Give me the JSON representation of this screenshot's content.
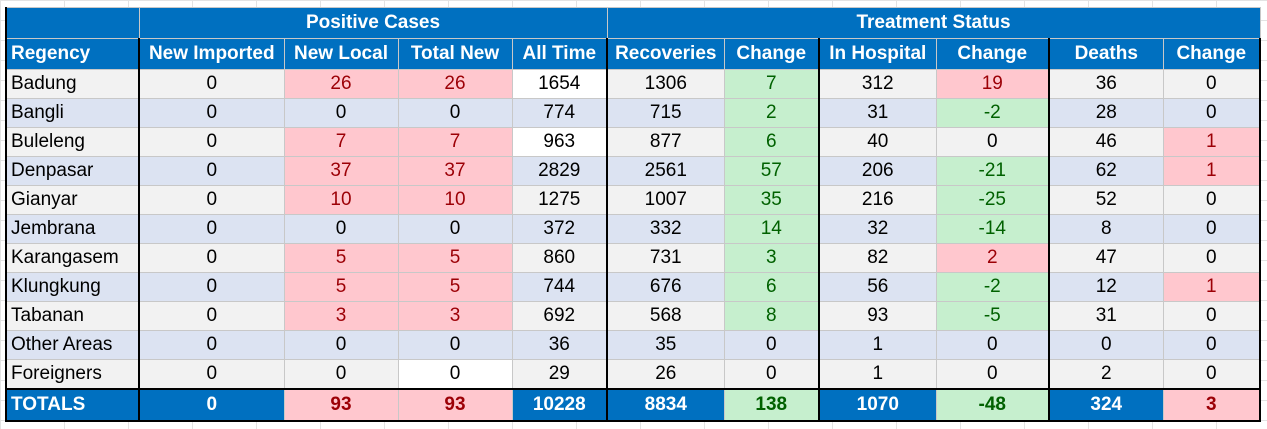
{
  "groups": {
    "positive": "Positive Cases",
    "treatment": "Treatment Status"
  },
  "headers": [
    "Regency",
    "New Imported",
    "New Local",
    "Total New",
    "All Time",
    "Recoveries",
    "Change",
    "In Hospital",
    "Change",
    "Deaths",
    "Change"
  ],
  "rows": [
    {
      "region": "Badung",
      "values": [
        "0",
        "26",
        "26",
        "1654",
        "1306",
        "7",
        "312",
        "19",
        "36",
        "0"
      ]
    },
    {
      "region": "Bangli",
      "values": [
        "0",
        "0",
        "0",
        "774",
        "715",
        "2",
        "31",
        "-2",
        "28",
        "0"
      ]
    },
    {
      "region": "Buleleng",
      "values": [
        "0",
        "7",
        "7",
        "963",
        "877",
        "6",
        "40",
        "0",
        "46",
        "1"
      ]
    },
    {
      "region": "Denpasar",
      "values": [
        "0",
        "37",
        "37",
        "2829",
        "2561",
        "57",
        "206",
        "-21",
        "62",
        "1"
      ]
    },
    {
      "region": "Gianyar",
      "values": [
        "0",
        "10",
        "10",
        "1275",
        "1007",
        "35",
        "216",
        "-25",
        "52",
        "0"
      ]
    },
    {
      "region": "Jembrana",
      "values": [
        "0",
        "0",
        "0",
        "372",
        "332",
        "14",
        "32",
        "-14",
        "8",
        "0"
      ]
    },
    {
      "region": "Karangasem",
      "values": [
        "0",
        "5",
        "5",
        "860",
        "731",
        "3",
        "82",
        "2",
        "47",
        "0"
      ]
    },
    {
      "region": "Klungkung",
      "values": [
        "0",
        "5",
        "5",
        "744",
        "676",
        "6",
        "56",
        "-2",
        "12",
        "1"
      ]
    },
    {
      "region": "Tabanan",
      "values": [
        "0",
        "3",
        "3",
        "692",
        "568",
        "8",
        "93",
        "-5",
        "31",
        "0"
      ]
    },
    {
      "region": "Other Areas",
      "values": [
        "0",
        "0",
        "0",
        "36",
        "35",
        "0",
        "1",
        "0",
        "0",
        "0"
      ]
    },
    {
      "region": "Foreigners",
      "values": [
        "0",
        "0",
        "0",
        "29",
        "26",
        "0",
        "1",
        "0",
        "2",
        "0"
      ]
    }
  ],
  "totals": {
    "region": "TOTALS",
    "values": [
      "0",
      "93",
      "93",
      "10228",
      "8834",
      "138",
      "1070",
      "-48",
      "324",
      "3"
    ]
  },
  "colors": {
    "header_blue": "#0070c0",
    "increase_fill": "#ffc7ce",
    "increase_text": "#9c0006",
    "decrease_fill": "#c6efce",
    "decrease_text": "#006100",
    "row_alt": "#dce3f2"
  }
}
